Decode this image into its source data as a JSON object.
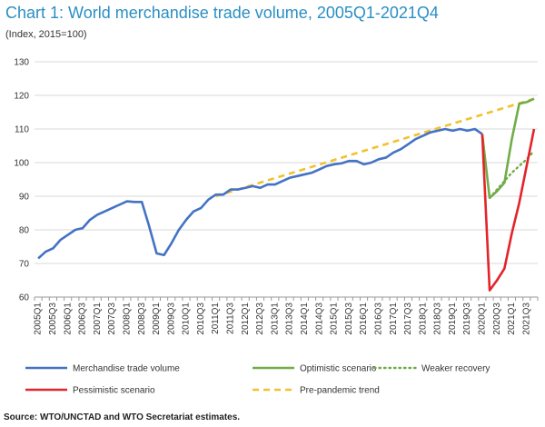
{
  "title": "Chart 1: World merchandise trade volume, 2005Q1-2021Q4",
  "subtitle": "(Index, 2015=100)",
  "source": "Source: WTO/UNCTAD and WTO Secretariat estimates.",
  "colors": {
    "merchandise": "#4472c4",
    "optimistic": "#70ad47",
    "weaker": "#70ad47",
    "pessimistic": "#e3242b",
    "trend": "#f2c12e",
    "grid": "#d9d9d9",
    "title": "#2a8fc4"
  },
  "chart_data": {
    "type": "line",
    "title": "Chart 1: World merchandise trade volume, 2005Q1-2021Q4",
    "ylabel": "(Index, 2015=100)",
    "ylim": [
      60,
      130
    ],
    "yticks": [
      60,
      70,
      80,
      90,
      100,
      110,
      120,
      130
    ],
    "grid": "horizontal",
    "legend_position": "bottom",
    "x_start": "2005Q1",
    "x_end": "2021Q4",
    "x_tick_labels": [
      "2005Q1",
      "2005Q3",
      "2006Q1",
      "2006Q3",
      "2007Q1",
      "2007Q3",
      "2008Q1",
      "2008Q3",
      "2009Q1",
      "2009Q3",
      "2010Q1",
      "2010Q3",
      "2011Q1",
      "2011Q3",
      "2012Q1",
      "2012Q3",
      "2013Q1",
      "2013Q3",
      "2014Q1",
      "2014Q3",
      "2015Q1",
      "2015Q3",
      "2016Q1",
      "2016Q3",
      "2017Q1",
      "2017Q3",
      "2018Q1",
      "2018Q3",
      "2019Q1",
      "2019Q3",
      "2020Q1",
      "2020Q3",
      "2021Q1",
      "2021Q3"
    ],
    "series": [
      {
        "name": "Merchandise trade volume",
        "color": "#4472c4",
        "style": "solid",
        "points": [
          [
            "2005Q1",
            71.5
          ],
          [
            "2005Q2",
            73.5
          ],
          [
            "2005Q3",
            74.5
          ],
          [
            "2005Q4",
            77
          ],
          [
            "2006Q1",
            78.5
          ],
          [
            "2006Q2",
            80
          ],
          [
            "2006Q3",
            80.5
          ],
          [
            "2006Q4",
            83
          ],
          [
            "2007Q1",
            84.5
          ],
          [
            "2007Q2",
            85.5
          ],
          [
            "2007Q3",
            86.5
          ],
          [
            "2007Q4",
            87.5
          ],
          [
            "2008Q1",
            88.5
          ],
          [
            "2008Q2",
            88.3
          ],
          [
            "2008Q3",
            88.3
          ],
          [
            "2008Q4",
            81
          ],
          [
            "2009Q1",
            73
          ],
          [
            "2009Q2",
            72.5
          ],
          [
            "2009Q3",
            76
          ],
          [
            "2009Q4",
            80
          ],
          [
            "2010Q1",
            83
          ],
          [
            "2010Q2",
            85.5
          ],
          [
            "2010Q3",
            86.5
          ],
          [
            "2010Q4",
            89
          ],
          [
            "2011Q1",
            90.5
          ],
          [
            "2011Q2",
            90.5
          ],
          [
            "2011Q3",
            92
          ],
          [
            "2011Q4",
            92
          ],
          [
            "2012Q1",
            92.5
          ],
          [
            "2012Q2",
            93
          ],
          [
            "2012Q3",
            92.5
          ],
          [
            "2012Q4",
            93.5
          ],
          [
            "2013Q1",
            93.5
          ],
          [
            "2013Q2",
            94.5
          ],
          [
            "2013Q3",
            95.5
          ],
          [
            "2013Q4",
            96
          ],
          [
            "2014Q1",
            96.5
          ],
          [
            "2014Q2",
            97
          ],
          [
            "2014Q3",
            98
          ],
          [
            "2014Q4",
            99
          ],
          [
            "2015Q1",
            99.5
          ],
          [
            "2015Q2",
            99.8
          ],
          [
            "2015Q3",
            100.5
          ],
          [
            "2015Q4",
            100.5
          ],
          [
            "2016Q1",
            99.5
          ],
          [
            "2016Q2",
            100
          ],
          [
            "2016Q3",
            101
          ],
          [
            "2016Q4",
            101.5
          ],
          [
            "2017Q1",
            103
          ],
          [
            "2017Q2",
            104
          ],
          [
            "2017Q3",
            105.5
          ],
          [
            "2017Q4",
            107
          ],
          [
            "2018Q1",
            108
          ],
          [
            "2018Q2",
            109
          ],
          [
            "2018Q3",
            109.5
          ],
          [
            "2018Q4",
            110
          ],
          [
            "2019Q1",
            109.5
          ],
          [
            "2019Q2",
            110
          ],
          [
            "2019Q3",
            109.5
          ],
          [
            "2019Q4",
            110
          ],
          [
            "2020Q1",
            108.5
          ]
        ]
      },
      {
        "name": "Optimistic scenario",
        "color": "#70ad47",
        "style": "solid",
        "points": [
          [
            "2020Q1",
            108.5
          ],
          [
            "2020Q2",
            89.5
          ],
          [
            "2020Q3",
            91.5
          ],
          [
            "2020Q4",
            94
          ],
          [
            "2021Q1",
            107
          ],
          [
            "2021Q2",
            117.5
          ],
          [
            "2021Q3",
            118
          ],
          [
            "2021Q4",
            119
          ]
        ]
      },
      {
        "name": "Weaker recovery",
        "color": "#70ad47",
        "style": "dotted",
        "points": [
          [
            "2020Q2",
            89.5
          ],
          [
            "2020Q3",
            92
          ],
          [
            "2020Q4",
            94.5
          ],
          [
            "2021Q1",
            97
          ],
          [
            "2021Q2",
            99
          ],
          [
            "2021Q3",
            101
          ],
          [
            "2021Q4",
            103.5
          ]
        ]
      },
      {
        "name": "Pessimistic scenario",
        "color": "#e3242b",
        "style": "solid",
        "points": [
          [
            "2020Q1",
            108.5
          ],
          [
            "2020Q2",
            62
          ],
          [
            "2020Q3",
            65
          ],
          [
            "2020Q4",
            68.5
          ],
          [
            "2021Q1",
            79
          ],
          [
            "2021Q2",
            88
          ],
          [
            "2021Q3",
            99
          ],
          [
            "2021Q4",
            110
          ]
        ]
      },
      {
        "name": "Pre-pandemic trend",
        "color": "#f2c12e",
        "style": "dashed",
        "points": [
          [
            "2011Q1",
            90
          ],
          [
            "2021Q4",
            119
          ]
        ]
      }
    ],
    "legend": [
      {
        "name": "Merchandise trade volume",
        "color": "#4472c4",
        "style": "solid"
      },
      {
        "name": "Optimistic scenario",
        "color": "#70ad47",
        "style": "solid"
      },
      {
        "name": "Weaker recovery",
        "color": "#70ad47",
        "style": "dotted"
      },
      {
        "name": "Pessimistic scenario",
        "color": "#e3242b",
        "style": "solid"
      },
      {
        "name": "Pre-pandemic trend",
        "color": "#f2c12e",
        "style": "dashed"
      }
    ]
  }
}
